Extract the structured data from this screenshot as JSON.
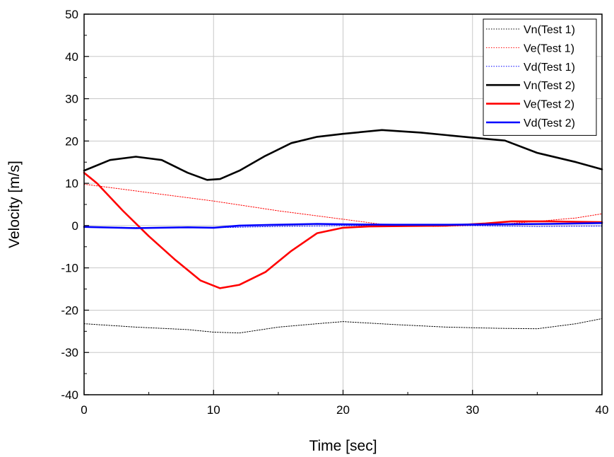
{
  "chart_data": {
    "type": "line",
    "xlabel": "Time [sec]",
    "ylabel": "Velocity [m/s]",
    "xlim": [
      0,
      40
    ],
    "ylim": [
      -40,
      50
    ],
    "xticks": [
      0,
      10,
      20,
      30,
      40
    ],
    "yticks": [
      -40,
      -30,
      -20,
      -10,
      0,
      10,
      20,
      30,
      40,
      50
    ],
    "grid": true,
    "legend_position": "top-right",
    "series": [
      {
        "name": "Vn(Test 1)",
        "color": "#000000",
        "style": "dotted",
        "x": [
          0,
          4,
          8,
          10,
          12,
          15,
          18,
          20,
          24,
          28,
          32,
          35,
          38,
          40
        ],
        "y": [
          -23.2,
          -24.0,
          -24.6,
          -25.2,
          -25.4,
          -24.0,
          -23.2,
          -22.7,
          -23.4,
          -24.0,
          -24.3,
          -24.4,
          -23.2,
          -22.0
        ]
      },
      {
        "name": "Ve(Test 1)",
        "color": "#ff0000",
        "style": "dotted",
        "x": [
          0,
          5,
          10,
          15,
          20,
          23,
          27,
          30,
          33,
          35,
          38,
          40
        ],
        "y": [
          9.8,
          7.8,
          5.8,
          3.5,
          1.5,
          0.3,
          -0.2,
          0.0,
          0.5,
          1.0,
          1.8,
          2.8
        ]
      },
      {
        "name": "Vd(Test 1)",
        "color": "#0000ff",
        "style": "dotted",
        "x": [
          0,
          5,
          10,
          15,
          20,
          25,
          30,
          35,
          40
        ],
        "y": [
          -0.3,
          -0.5,
          -0.5,
          -0.2,
          0.0,
          0.0,
          0.0,
          -0.2,
          -0.1
        ]
      },
      {
        "name": "Vn(Test 2)",
        "color": "#000000",
        "style": "solid",
        "x": [
          0,
          2,
          4,
          6,
          8,
          9.5,
          10.5,
          12,
          14,
          16,
          18,
          20,
          23,
          26,
          30,
          32.5,
          35,
          38,
          40
        ],
        "y": [
          13.0,
          15.5,
          16.3,
          15.5,
          12.5,
          10.8,
          11.0,
          13.0,
          16.5,
          19.5,
          21.0,
          21.7,
          22.6,
          22.0,
          20.8,
          20.1,
          17.2,
          15.0,
          13.3
        ]
      },
      {
        "name": "Ve(Test 2)",
        "color": "#ff0000",
        "style": "solid",
        "x": [
          0,
          1,
          3,
          5,
          7,
          9,
          10.5,
          12,
          14,
          16,
          18,
          20,
          22,
          25,
          28,
          31,
          33,
          36,
          38,
          40
        ],
        "y": [
          12.5,
          10.0,
          3.5,
          -2.5,
          -8.0,
          -13.0,
          -14.8,
          -14.0,
          -11.0,
          -6.0,
          -1.8,
          -0.5,
          -0.2,
          -0.1,
          0.0,
          0.5,
          1.0,
          1.0,
          0.9,
          0.8
        ]
      },
      {
        "name": "Vd(Test 2)",
        "color": "#0000ff",
        "style": "solid",
        "x": [
          0,
          4,
          8,
          10,
          12,
          15,
          18,
          20,
          24,
          28,
          32,
          36,
          40
        ],
        "y": [
          -0.3,
          -0.6,
          -0.4,
          -0.5,
          0.0,
          0.2,
          0.4,
          0.3,
          0.2,
          0.2,
          0.3,
          0.4,
          0.6
        ]
      }
    ]
  }
}
